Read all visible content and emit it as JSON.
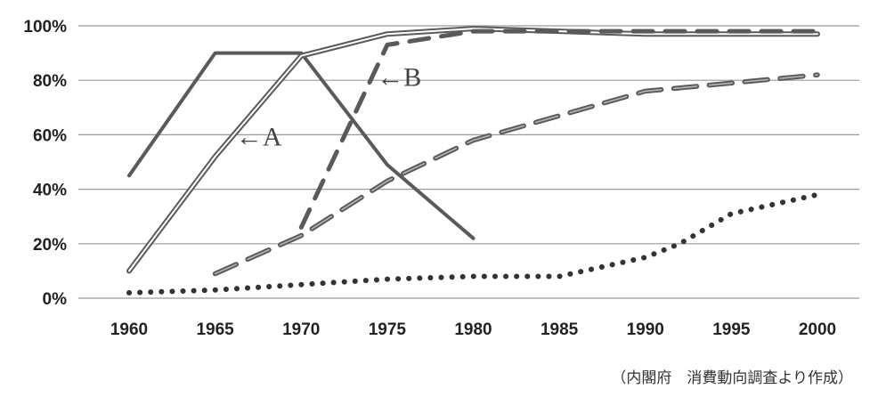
{
  "chart_data": {
    "type": "line",
    "title": "",
    "xlabel": "",
    "ylabel": "",
    "x": [
      1960,
      1965,
      1970,
      1975,
      1980,
      1985,
      1990,
      1995,
      2000
    ],
    "x_tick_labels": [
      "1960",
      "1965",
      "1970",
      "1975",
      "1980",
      "1985",
      "1990",
      "1995",
      "2000"
    ],
    "xlim": [
      1960,
      2000
    ],
    "ylim": [
      0,
      100
    ],
    "y_ticks": [
      0,
      20,
      40,
      60,
      80,
      100
    ],
    "y_tick_labels": [
      "0%",
      "20%",
      "40%",
      "60%",
      "80%",
      "100%"
    ],
    "grid": "horizontal",
    "legend": "none",
    "series": [
      {
        "style": "solid",
        "color": "#5a5a5a",
        "points": [
          [
            1960,
            45
          ],
          [
            1965,
            90
          ],
          [
            1970,
            90
          ],
          [
            1975,
            49
          ],
          [
            1980,
            22
          ]
        ]
      },
      {
        "style": "double",
        "color": "#5a5a5a",
        "points": [
          [
            1960,
            10
          ],
          [
            1965,
            52
          ],
          [
            1970,
            89
          ],
          [
            1975,
            97
          ],
          [
            1980,
            99
          ],
          [
            1985,
            98
          ],
          [
            1990,
            97
          ],
          [
            1995,
            97
          ],
          [
            2000,
            97
          ]
        ]
      },
      {
        "style": "dashed-bold",
        "color": "#5a5a5a",
        "points": [
          [
            1970,
            26
          ],
          [
            1975,
            93
          ],
          [
            1980,
            98
          ],
          [
            1985,
            98
          ],
          [
            1990,
            98
          ],
          [
            1995,
            98
          ],
          [
            2000,
            98
          ]
        ]
      },
      {
        "style": "dashed-light",
        "color": "#5a5a5a",
        "points": [
          [
            1965,
            9
          ],
          [
            1970,
            23
          ],
          [
            1975,
            43
          ],
          [
            1980,
            58
          ],
          [
            1985,
            67
          ],
          [
            1990,
            76
          ],
          [
            1995,
            79
          ],
          [
            2000,
            82
          ]
        ]
      },
      {
        "style": "dotted",
        "color": "#333333",
        "points": [
          [
            1960,
            2
          ],
          [
            1965,
            3
          ],
          [
            1970,
            5
          ],
          [
            1975,
            7
          ],
          [
            1980,
            8
          ],
          [
            1985,
            8
          ],
          [
            1990,
            15
          ],
          [
            1992,
            20
          ],
          [
            1995,
            31
          ],
          [
            2000,
            38
          ]
        ]
      }
    ],
    "annotations": [
      {
        "text": "←A",
        "x": 1966.2,
        "y": 56
      },
      {
        "text": "←B",
        "x": 1974.4,
        "y": 78
      }
    ]
  },
  "source_note": "（内閣府　消費動向調査より作成）"
}
